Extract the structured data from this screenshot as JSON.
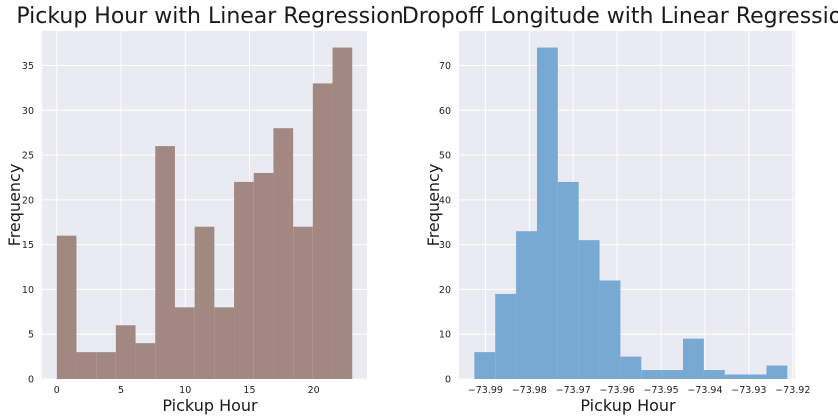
{
  "chart_data": [
    {
      "type": "histogram",
      "title": "Pickup Hour with Linear Regression",
      "xlabel": "Pickup Hour",
      "ylabel": "Frequency",
      "color": "#a18981",
      "grid": true,
      "xlim": [
        -1.15,
        24.15
      ],
      "ylim": [
        0,
        38.85
      ],
      "xticks": [
        0,
        5,
        10,
        15,
        20
      ],
      "yticks": [
        0,
        5,
        10,
        15,
        20,
        25,
        30,
        35
      ],
      "bin_edges": [
        0,
        1.533,
        3.067,
        4.6,
        6.133,
        7.667,
        9.2,
        10.733,
        12.267,
        13.8,
        15.333,
        16.867,
        18.4,
        19.933,
        21.467,
        23
      ],
      "values": [
        16,
        3,
        3,
        6,
        4,
        26,
        8,
        17,
        8,
        22,
        23,
        28,
        17,
        33,
        37
      ]
    },
    {
      "type": "histogram",
      "title": "Dropoff Longitude with Linear Regression",
      "xlabel": "Pickup Hour",
      "ylabel": "Frequency",
      "color": "#77a9d2",
      "grid": true,
      "xlim": [
        -73.996,
        -73.9195
      ],
      "ylim": [
        0,
        77.7
      ],
      "xticks": [
        -73.99,
        -73.98,
        -73.97,
        -73.96,
        -73.95,
        -73.94,
        -73.93,
        -73.92
      ],
      "xtick_labels": [
        "−73.99",
        "−73.98",
        "−73.97",
        "−73.96",
        "−73.95",
        "−73.94",
        "−73.93",
        "−73.92"
      ],
      "yticks": [
        0,
        10,
        20,
        30,
        40,
        50,
        60,
        70
      ],
      "bin_edges": [
        -73.9925,
        -73.98775,
        -73.983,
        -73.97825,
        -73.9735,
        -73.96875,
        -73.964,
        -73.95925,
        -73.9545,
        -73.94975,
        -73.945,
        -73.94025,
        -73.9355,
        -73.93075,
        -73.926,
        -73.92125
      ],
      "values": [
        6,
        19,
        33,
        74,
        44,
        31,
        22,
        5,
        2,
        2,
        9,
        2,
        1,
        1,
        3
      ]
    }
  ]
}
